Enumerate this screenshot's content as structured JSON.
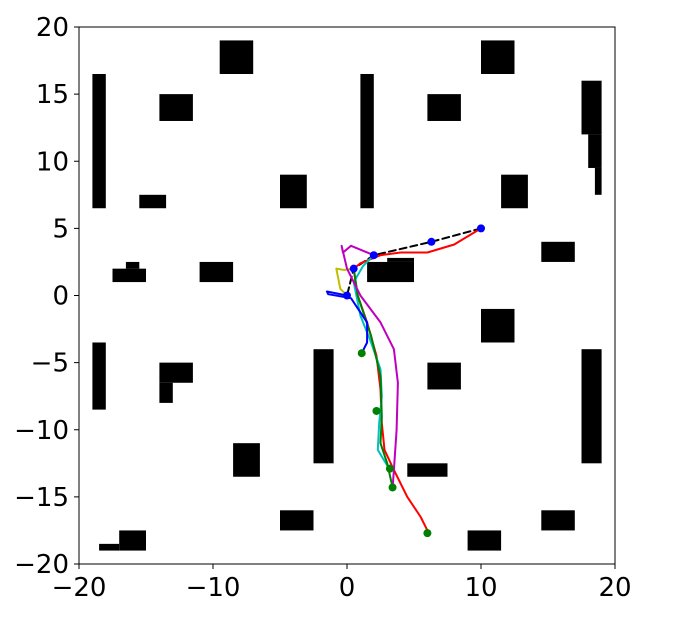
{
  "chart_data": {
    "type": "scatter",
    "title": "",
    "xlabel": "",
    "ylabel": "",
    "xlim": [
      -20,
      20
    ],
    "ylim": [
      -20,
      20
    ],
    "xticks": [
      -20,
      -10,
      0,
      10,
      20
    ],
    "yticks": [
      -20,
      -15,
      -10,
      -5,
      0,
      5,
      10,
      15,
      20
    ],
    "xtick_labels": [
      "−20",
      "−10",
      "0",
      "10",
      "20"
    ],
    "ytick_labels": [
      "−20",
      "−15",
      "−10",
      "−5",
      "0",
      "5",
      "10",
      "15",
      "20"
    ],
    "grid": false,
    "legend": "none",
    "obstacle_color": "#000000",
    "obstacles": [
      [
        -19,
        -18,
        6.5,
        16.5
      ],
      [
        -9.5,
        -7,
        16.5,
        19
      ],
      [
        -14,
        -11.5,
        13,
        15
      ],
      [
        1,
        2,
        6.5,
        16.5
      ],
      [
        6,
        8.5,
        13,
        15
      ],
      [
        10,
        12.5,
        16.5,
        19
      ],
      [
        17.5,
        19,
        12,
        16
      ],
      [
        18,
        19,
        9.5,
        12
      ],
      [
        18.5,
        19,
        7.5,
        9.5
      ],
      [
        -5,
        -3,
        6.5,
        9
      ],
      [
        -15.5,
        -13.5,
        6.5,
        7.5
      ],
      [
        11.5,
        13.5,
        6.5,
        9
      ],
      [
        14.5,
        17,
        2.5,
        4
      ],
      [
        -17.5,
        -15,
        1,
        2
      ],
      [
        -16.5,
        -15.5,
        2,
        2.5
      ],
      [
        -11,
        -8.5,
        1,
        2.5
      ],
      [
        1.5,
        5,
        1,
        2.5
      ],
      [
        3,
        5,
        2.5,
        2.8
      ],
      [
        10,
        12.5,
        -3.5,
        -1
      ],
      [
        -19,
        -18,
        -8.5,
        -3.5
      ],
      [
        -14,
        -11.5,
        -6.5,
        -5
      ],
      [
        -14,
        -13,
        -8,
        -6.5
      ],
      [
        -2.5,
        -1,
        -12.5,
        -4
      ],
      [
        6,
        8.5,
        -7,
        -5
      ],
      [
        17.5,
        19,
        -12.5,
        -4
      ],
      [
        -8.5,
        -6.5,
        -13.5,
        -11
      ],
      [
        4.5,
        7.5,
        -13.5,
        -12.5
      ],
      [
        -5,
        -2.5,
        -17.5,
        -16
      ],
      [
        14.5,
        17,
        -17.5,
        -16
      ],
      [
        9,
        11.5,
        -19,
        -17.5
      ],
      [
        -17,
        -15,
        -19,
        -17.5
      ],
      [
        -18.5,
        -17,
        -19,
        -18.5
      ]
    ],
    "series": [
      {
        "color": "#000000",
        "dashed": true,
        "points": [
          [
            10,
            5
          ],
          [
            6.3,
            4
          ],
          [
            2,
            3
          ],
          [
            0.5,
            2
          ],
          [
            0,
            0
          ]
        ]
      },
      {
        "color": "#ff0000",
        "points": [
          [
            10,
            5
          ],
          [
            8,
            3.8
          ],
          [
            6,
            3.2
          ],
          [
            4,
            3.2
          ],
          [
            2.5,
            3
          ],
          [
            1,
            2.4
          ],
          [
            0.5,
            2
          ],
          [
            0.8,
            0
          ],
          [
            1.5,
            -2
          ],
          [
            2.2,
            -4.5
          ],
          [
            2.5,
            -7
          ],
          [
            2.6,
            -9.5
          ],
          [
            2.8,
            -11.5
          ],
          [
            3.5,
            -13
          ],
          [
            4.5,
            -15
          ],
          [
            5.5,
            -16.5
          ],
          [
            6,
            -17.5
          ]
        ]
      },
      {
        "color": "#00bfbf",
        "points": [
          [
            2,
            3
          ],
          [
            1.2,
            2.2
          ],
          [
            0.5,
            1
          ],
          [
            1,
            -1.5
          ],
          [
            1.8,
            -3.5
          ],
          [
            2.5,
            -5.5
          ],
          [
            2.6,
            -7.5
          ],
          [
            2.4,
            -9.5
          ],
          [
            2.3,
            -11.5
          ],
          [
            3.2,
            -13
          ]
        ]
      },
      {
        "color": "#008000",
        "points": [
          [
            0.5,
            2
          ],
          [
            0.8,
            0
          ],
          [
            1.8,
            -3
          ],
          [
            2.5,
            -6
          ],
          [
            2.6,
            -9
          ],
          [
            2.5,
            -11
          ],
          [
            3,
            -12.5
          ],
          [
            3.4,
            -14.3
          ]
        ]
      },
      {
        "color": "#bfbf00",
        "points": [
          [
            0.5,
            2
          ],
          [
            -0.2,
            1.9
          ],
          [
            -0.8,
            2
          ],
          [
            -0.5,
            0.5
          ],
          [
            0,
            0
          ]
        ]
      },
      {
        "color": "#0000ff",
        "points": [
          [
            0,
            0
          ],
          [
            -1.5,
            0.3
          ],
          [
            -1.4,
            0.1
          ],
          [
            0.3,
            -0.2
          ],
          [
            1.5,
            -2
          ],
          [
            1.5,
            -3.5
          ],
          [
            1.1,
            -4.3
          ]
        ]
      },
      {
        "color": "#bf00bf",
        "points": [
          [
            2,
            3
          ],
          [
            0.3,
            3.7
          ],
          [
            -0.3,
            3.2
          ],
          [
            -0.4,
            3.7
          ],
          [
            0,
            2
          ],
          [
            1,
            0
          ],
          [
            2.5,
            -2
          ],
          [
            3.5,
            -4
          ],
          [
            3.8,
            -6.5
          ],
          [
            3.7,
            -10
          ],
          [
            3.5,
            -13
          ],
          [
            3.4,
            -14.3
          ]
        ]
      }
    ],
    "markers": [
      {
        "x": 10,
        "y": 5,
        "color": "#0000ff"
      },
      {
        "x": 6.3,
        "y": 4,
        "color": "#0000ff"
      },
      {
        "x": 2,
        "y": 3,
        "color": "#0000ff"
      },
      {
        "x": 0.5,
        "y": 2,
        "color": "#0000ff"
      },
      {
        "x": 0,
        "y": 0,
        "color": "#0000ff"
      },
      {
        "x": 1.1,
        "y": -4.3,
        "color": "#008000"
      },
      {
        "x": 2.2,
        "y": -8.6,
        "color": "#008000"
      },
      {
        "x": 3.2,
        "y": -12.9,
        "color": "#008000"
      },
      {
        "x": 3.4,
        "y": -14.3,
        "color": "#008000"
      },
      {
        "x": 6,
        "y": -17.7,
        "color": "#008000"
      }
    ]
  }
}
